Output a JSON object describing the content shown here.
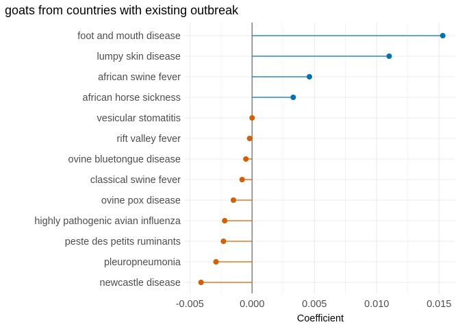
{
  "chart_data": {
    "type": "lollipop",
    "title": "goats from countries with existing outbreak",
    "xlabel": "Coefficient",
    "ylabel": "",
    "xlim": [
      -0.0054,
      0.0163
    ],
    "xticks": [
      -0.005,
      0.0,
      0.005,
      0.01,
      0.015
    ],
    "xtick_labels": [
      "-0.005",
      "0.000",
      "0.005",
      "0.010",
      "0.015"
    ],
    "reference_line": 0,
    "grid": true,
    "colors": {
      "positive": "#0072B2",
      "negative": "#D55E00",
      "reference": "#808080",
      "grid": "#ebebeb"
    },
    "categories": [
      "foot and mouth disease",
      "lumpy skin disease",
      "african swine fever",
      "african horse sickness",
      "vesicular stomatitis",
      "rift valley fever",
      "ovine bluetongue disease",
      "classical swine fever",
      "ovine pox disease",
      "highly pathogenic avian influenza",
      "peste des petits ruminants",
      "pleuropneumonia",
      "newcastle disease"
    ],
    "values": [
      0.0153,
      0.011,
      0.0046,
      0.0033,
      0.0,
      -0.0002,
      -0.0005,
      -0.0008,
      -0.0015,
      -0.0022,
      -0.0023,
      -0.0029,
      -0.0041
    ]
  }
}
